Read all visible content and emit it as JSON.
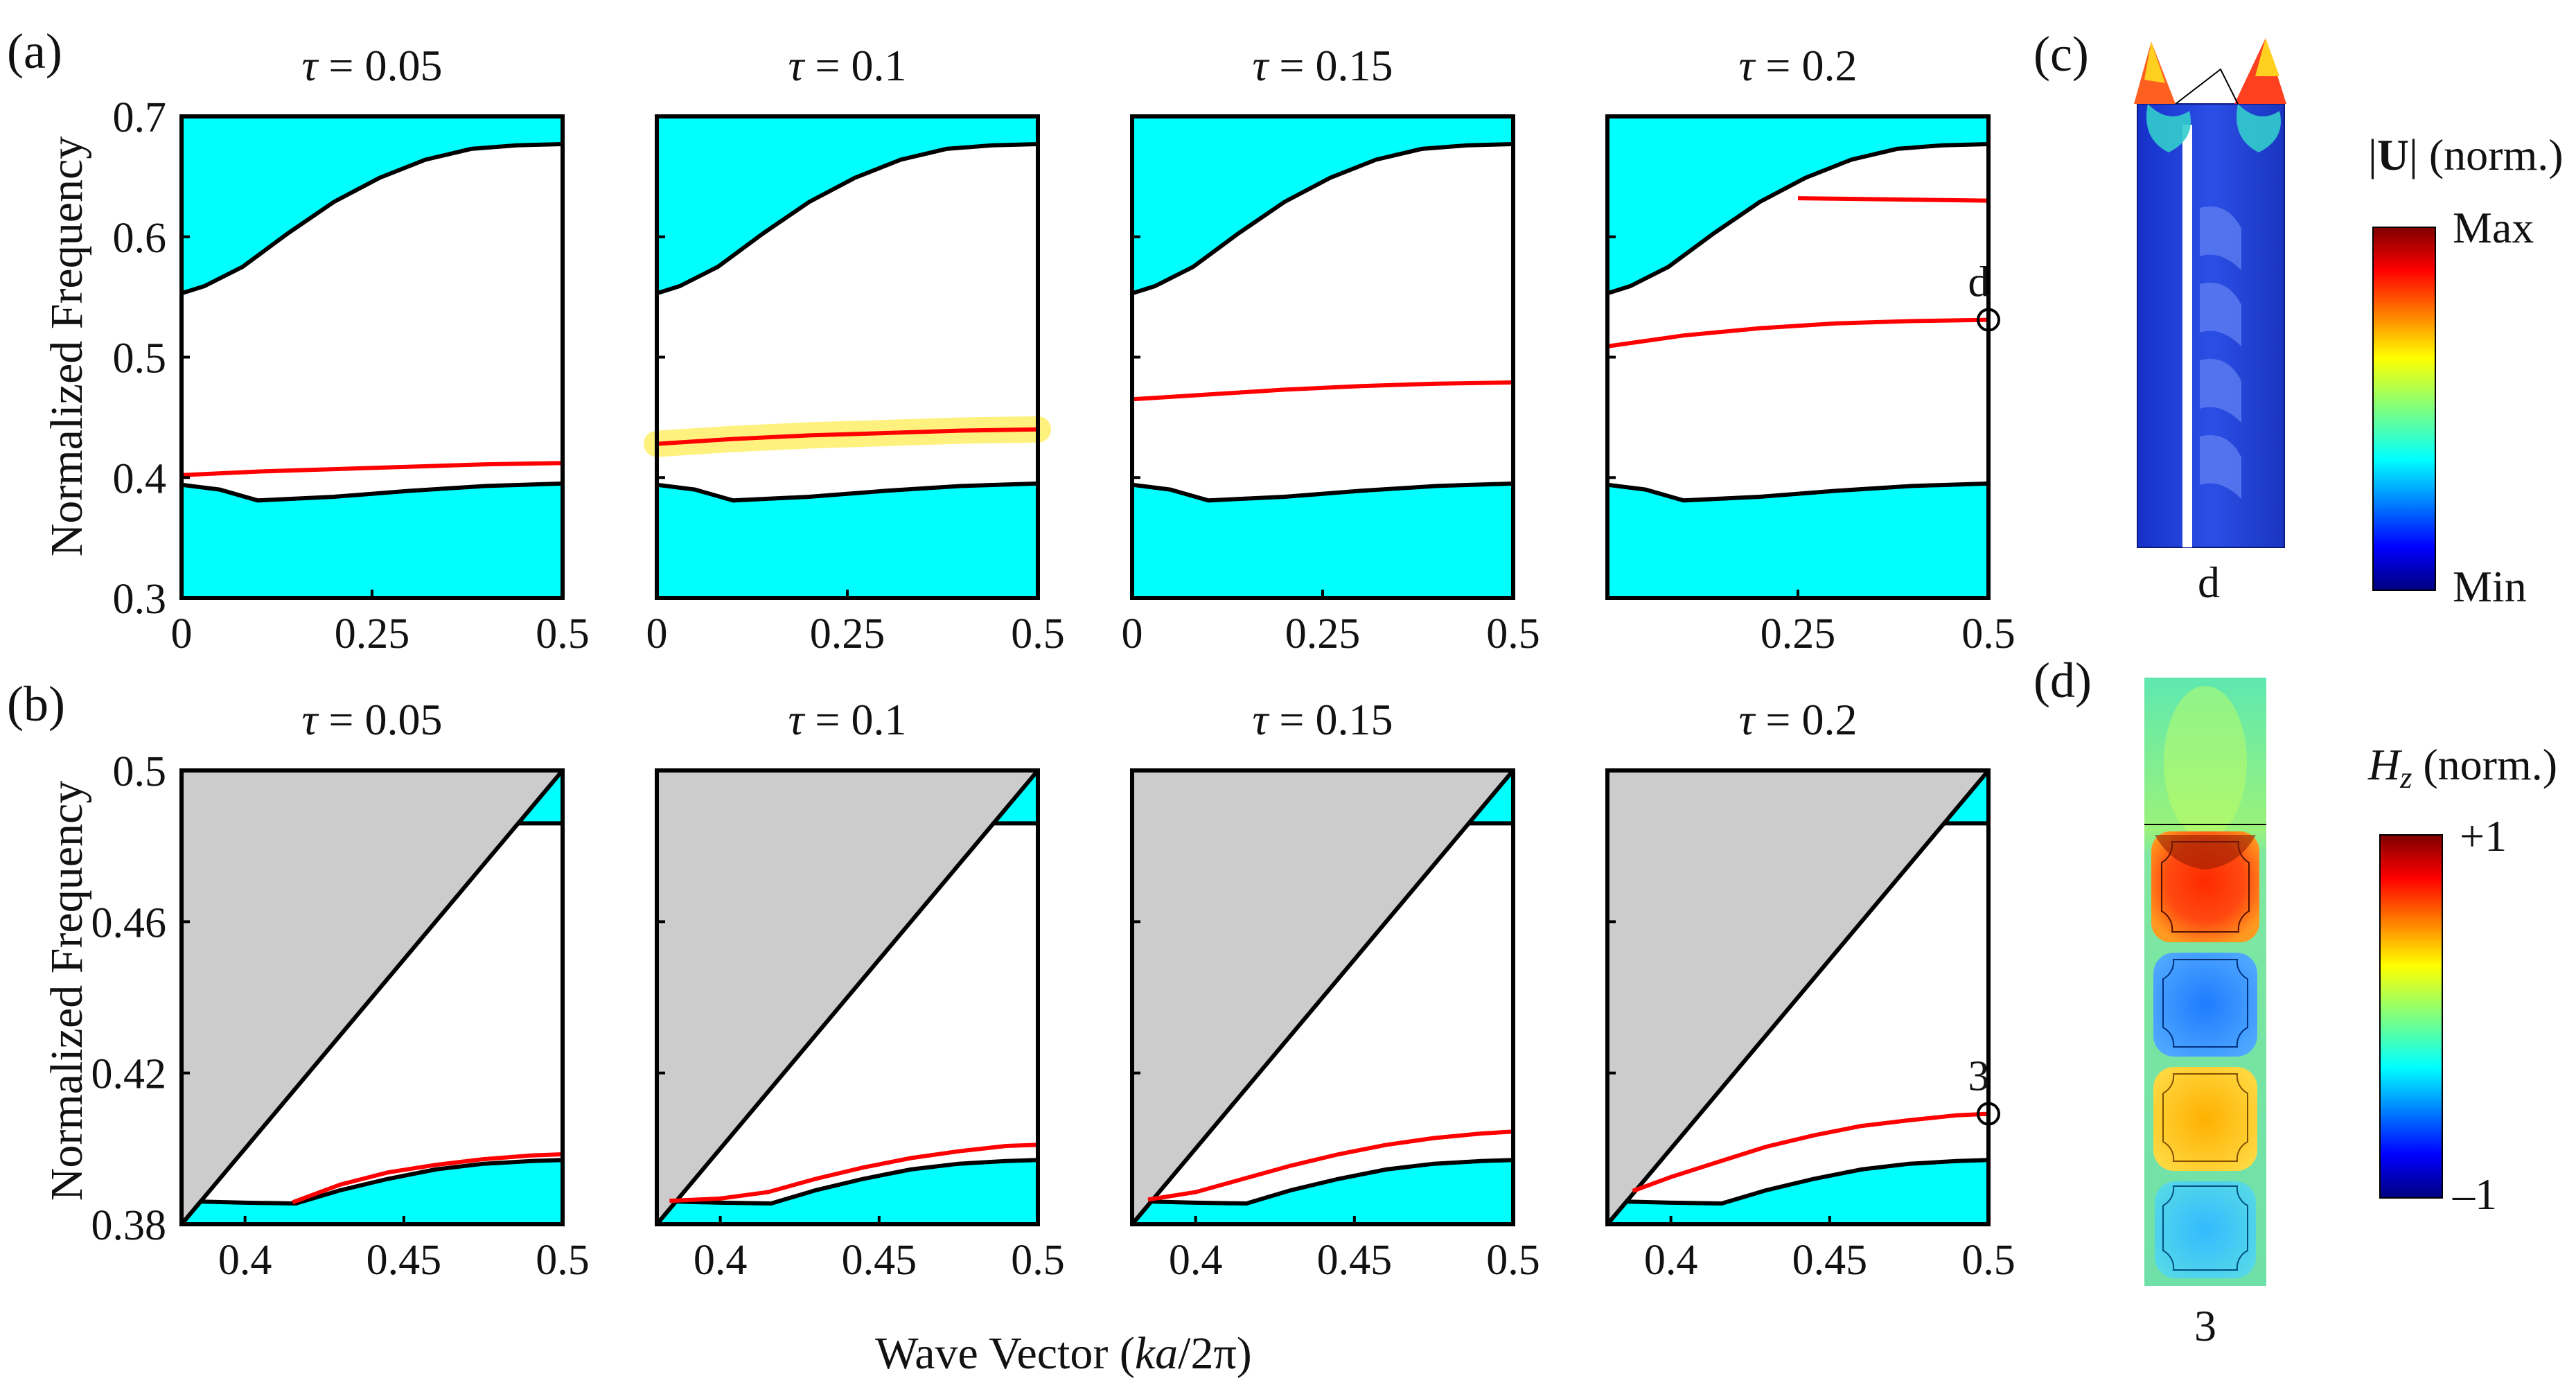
{
  "figure": {
    "panel_labels": {
      "a": "(a)",
      "b": "(b)",
      "c": "(c)",
      "d": "(d)"
    },
    "ylabel_a": "Normalized Frequency",
    "ylabel_b": "Normalized Frequency",
    "shared_xlabel": {
      "prefix": "Wave Vector (",
      "var": "ka",
      "suffix": "/2π)"
    },
    "tau_symbol": "τ",
    "colors": {
      "band": "#00FFFF",
      "light_cone": "#CCCCCC",
      "defect_mode": "#FF0000",
      "highlight": "#FFEE66",
      "frame": "#000000"
    }
  },
  "panel_c": {
    "label": "(c)",
    "colorbar_title_prefix": "|",
    "colorbar_title_bold": "U",
    "colorbar_title_suffix": "| (norm.)",
    "colorbar_max": "Max",
    "colorbar_min": "Min",
    "mode_label": "d",
    "colormap": "jet",
    "image_description_icon": "mechanical-mode-shape"
  },
  "panel_d": {
    "label": "(d)",
    "colorbar_title_var": "H",
    "colorbar_title_sub": "z",
    "colorbar_title_suffix": " (norm.)",
    "colorbar_max": "+1",
    "colorbar_min": "–1",
    "mode_label": "3",
    "colormap": "jet",
    "image_description_icon": "optical-field-map"
  },
  "chart_data": [
    {
      "id": "a1",
      "type": "line",
      "row": "a",
      "title_value": "0.05",
      "xlim": [
        0,
        0.5
      ],
      "ylim": [
        0.3,
        0.7
      ],
      "xticks": [
        "0",
        "0.25",
        "0.5"
      ],
      "yticks": [
        "0.3",
        "0.4",
        "0.5",
        "0.6",
        "0.7"
      ],
      "upper_band": [
        [
          0,
          0.553
        ],
        [
          0.03,
          0.559
        ],
        [
          0.08,
          0.575
        ],
        [
          0.14,
          0.603
        ],
        [
          0.2,
          0.629
        ],
        [
          0.26,
          0.649
        ],
        [
          0.32,
          0.664
        ],
        [
          0.38,
          0.673
        ],
        [
          0.44,
          0.676
        ],
        [
          0.5,
          0.677
        ]
      ],
      "lower_band": [
        [
          0,
          0.394
        ],
        [
          0.05,
          0.39
        ],
        [
          0.1,
          0.381
        ],
        [
          0.2,
          0.384
        ],
        [
          0.3,
          0.389
        ],
        [
          0.4,
          0.393
        ],
        [
          0.5,
          0.395
        ]
      ],
      "defect_modes": [
        [
          [
            0,
            0.402
          ],
          [
            0.1,
            0.405
          ],
          [
            0.2,
            0.407
          ],
          [
            0.3,
            0.409
          ],
          [
            0.4,
            0.411
          ],
          [
            0.5,
            0.412
          ]
        ]
      ]
    },
    {
      "id": "a2",
      "type": "line",
      "row": "a",
      "title_value": "0.1",
      "xlim": [
        0,
        0.5
      ],
      "ylim": [
        0.3,
        0.7
      ],
      "xticks": [
        "0",
        "0.25",
        "0.5"
      ],
      "yticks": [],
      "upper_band": [
        [
          0,
          0.553
        ],
        [
          0.03,
          0.559
        ],
        [
          0.08,
          0.575
        ],
        [
          0.14,
          0.603
        ],
        [
          0.2,
          0.629
        ],
        [
          0.26,
          0.649
        ],
        [
          0.32,
          0.664
        ],
        [
          0.38,
          0.673
        ],
        [
          0.44,
          0.676
        ],
        [
          0.5,
          0.677
        ]
      ],
      "lower_band": [
        [
          0,
          0.394
        ],
        [
          0.05,
          0.39
        ],
        [
          0.1,
          0.381
        ],
        [
          0.2,
          0.384
        ],
        [
          0.3,
          0.389
        ],
        [
          0.4,
          0.393
        ],
        [
          0.5,
          0.395
        ]
      ],
      "defect_modes": [
        [
          [
            0,
            0.428
          ],
          [
            0.1,
            0.432
          ],
          [
            0.2,
            0.435
          ],
          [
            0.3,
            0.437
          ],
          [
            0.4,
            0.439
          ],
          [
            0.5,
            0.44
          ]
        ]
      ],
      "highlighted": true
    },
    {
      "id": "a3",
      "type": "line",
      "row": "a",
      "title_value": "0.15",
      "xlim": [
        0,
        0.5
      ],
      "ylim": [
        0.3,
        0.7
      ],
      "xticks": [
        "0",
        "0.25",
        "0.5"
      ],
      "yticks": [],
      "upper_band": [
        [
          0,
          0.553
        ],
        [
          0.03,
          0.559
        ],
        [
          0.08,
          0.575
        ],
        [
          0.14,
          0.603
        ],
        [
          0.2,
          0.629
        ],
        [
          0.26,
          0.649
        ],
        [
          0.32,
          0.664
        ],
        [
          0.38,
          0.673
        ],
        [
          0.44,
          0.676
        ],
        [
          0.5,
          0.677
        ]
      ],
      "lower_band": [
        [
          0,
          0.394
        ],
        [
          0.05,
          0.39
        ],
        [
          0.1,
          0.381
        ],
        [
          0.2,
          0.384
        ],
        [
          0.3,
          0.389
        ],
        [
          0.4,
          0.393
        ],
        [
          0.5,
          0.395
        ]
      ],
      "defect_modes": [
        [
          [
            0,
            0.465
          ],
          [
            0.1,
            0.469
          ],
          [
            0.2,
            0.473
          ],
          [
            0.3,
            0.476
          ],
          [
            0.4,
            0.478
          ],
          [
            0.5,
            0.479
          ]
        ]
      ]
    },
    {
      "id": "a4",
      "type": "line",
      "row": "a",
      "title_value": "0.2",
      "xlim": [
        0,
        0.5
      ],
      "ylim": [
        0.3,
        0.7
      ],
      "xticks": [
        "0.25",
        "0.5"
      ],
      "yticks": [],
      "upper_band": [
        [
          0,
          0.553
        ],
        [
          0.03,
          0.559
        ],
        [
          0.08,
          0.575
        ],
        [
          0.14,
          0.603
        ],
        [
          0.2,
          0.629
        ],
        [
          0.26,
          0.649
        ],
        [
          0.32,
          0.664
        ],
        [
          0.38,
          0.673
        ],
        [
          0.44,
          0.676
        ],
        [
          0.5,
          0.677
        ]
      ],
      "lower_band": [
        [
          0,
          0.394
        ],
        [
          0.05,
          0.39
        ],
        [
          0.1,
          0.381
        ],
        [
          0.2,
          0.384
        ],
        [
          0.3,
          0.389
        ],
        [
          0.4,
          0.393
        ],
        [
          0.5,
          0.395
        ]
      ],
      "defect_modes": [
        [
          [
            0,
            0.509
          ],
          [
            0.1,
            0.518
          ],
          [
            0.2,
            0.524
          ],
          [
            0.3,
            0.528
          ],
          [
            0.4,
            0.53
          ],
          [
            0.5,
            0.531
          ]
        ],
        [
          [
            0.25,
            0.632
          ],
          [
            0.5,
            0.63
          ]
        ]
      ],
      "marker": {
        "x": 0.5,
        "y": 0.531,
        "label": "d"
      }
    },
    {
      "id": "b1",
      "type": "line",
      "row": "b",
      "title_value": "0.05",
      "xlim": [
        0.38,
        0.5
      ],
      "ylim": [
        0.38,
        0.5
      ],
      "xticks": [
        "0.4",
        "0.45",
        "0.5"
      ],
      "yticks": [
        "0.38",
        "0.42",
        "0.46",
        "0.5"
      ],
      "top_band_y": 0.486,
      "lower_band": [
        [
          0.38,
          0.38
        ],
        [
          0.386,
          0.386
        ],
        [
          0.4,
          0.3857
        ],
        [
          0.416,
          0.3855
        ],
        [
          0.43,
          0.389
        ],
        [
          0.445,
          0.392
        ],
        [
          0.46,
          0.3945
        ],
        [
          0.475,
          0.396
        ],
        [
          0.49,
          0.3967
        ],
        [
          0.5,
          0.397
        ]
      ],
      "defect_modes": [
        [
          [
            0.415,
            0.3858
          ],
          [
            0.43,
            0.3905
          ],
          [
            0.445,
            0.3937
          ],
          [
            0.46,
            0.3957
          ],
          [
            0.475,
            0.3972
          ],
          [
            0.49,
            0.3982
          ],
          [
            0.5,
            0.3985
          ]
        ]
      ]
    },
    {
      "id": "b2",
      "type": "line",
      "row": "b",
      "title_value": "0.1",
      "xlim": [
        0.38,
        0.5
      ],
      "ylim": [
        0.38,
        0.5
      ],
      "xticks": [
        "0.4",
        "0.45",
        "0.5"
      ],
      "yticks": [],
      "top_band_y": 0.486,
      "lower_band": [
        [
          0.38,
          0.38
        ],
        [
          0.386,
          0.386
        ],
        [
          0.4,
          0.3857
        ],
        [
          0.416,
          0.3855
        ],
        [
          0.43,
          0.389
        ],
        [
          0.445,
          0.392
        ],
        [
          0.46,
          0.3945
        ],
        [
          0.475,
          0.396
        ],
        [
          0.49,
          0.3967
        ],
        [
          0.5,
          0.397
        ]
      ],
      "defect_modes": [
        [
          [
            0.384,
            0.3862
          ],
          [
            0.4,
            0.3868
          ],
          [
            0.415,
            0.3885
          ],
          [
            0.43,
            0.392
          ],
          [
            0.445,
            0.395
          ],
          [
            0.46,
            0.3975
          ],
          [
            0.475,
            0.3993
          ],
          [
            0.49,
            0.4007
          ],
          [
            0.5,
            0.401
          ]
        ]
      ]
    },
    {
      "id": "b3",
      "type": "line",
      "row": "b",
      "title_value": "0.15",
      "xlim": [
        0.38,
        0.5
      ],
      "ylim": [
        0.38,
        0.5
      ],
      "xticks": [
        "0.4",
        "0.45",
        "0.5"
      ],
      "yticks": [],
      "top_band_y": 0.486,
      "lower_band": [
        [
          0.38,
          0.38
        ],
        [
          0.386,
          0.386
        ],
        [
          0.4,
          0.3857
        ],
        [
          0.416,
          0.3855
        ],
        [
          0.43,
          0.389
        ],
        [
          0.445,
          0.392
        ],
        [
          0.46,
          0.3945
        ],
        [
          0.475,
          0.396
        ],
        [
          0.49,
          0.3967
        ],
        [
          0.5,
          0.397
        ]
      ],
      "defect_modes": [
        [
          [
            0.385,
            0.3865
          ],
          [
            0.4,
            0.3885
          ],
          [
            0.415,
            0.392
          ],
          [
            0.43,
            0.3955
          ],
          [
            0.445,
            0.3985
          ],
          [
            0.46,
            0.401
          ],
          [
            0.475,
            0.4028
          ],
          [
            0.49,
            0.404
          ],
          [
            0.5,
            0.4045
          ]
        ]
      ]
    },
    {
      "id": "b4",
      "type": "line",
      "row": "b",
      "title_value": "0.2",
      "xlim": [
        0.38,
        0.5
      ],
      "ylim": [
        0.38,
        0.5
      ],
      "xticks": [
        "0.4",
        "0.45",
        "0.5"
      ],
      "yticks": [],
      "top_band_y": 0.486,
      "lower_band": [
        [
          0.38,
          0.38
        ],
        [
          0.386,
          0.386
        ],
        [
          0.4,
          0.3857
        ],
        [
          0.416,
          0.3855
        ],
        [
          0.43,
          0.389
        ],
        [
          0.445,
          0.392
        ],
        [
          0.46,
          0.3945
        ],
        [
          0.475,
          0.396
        ],
        [
          0.49,
          0.3967
        ],
        [
          0.5,
          0.397
        ]
      ],
      "defect_modes": [
        [
          [
            0.388,
            0.3888
          ],
          [
            0.4,
            0.3925
          ],
          [
            0.415,
            0.3965
          ],
          [
            0.43,
            0.4005
          ],
          [
            0.445,
            0.4035
          ],
          [
            0.46,
            0.406
          ],
          [
            0.475,
            0.4075
          ],
          [
            0.49,
            0.4088
          ],
          [
            0.5,
            0.4092
          ]
        ]
      ],
      "marker": {
        "x": 0.5,
        "y": 0.4092,
        "label": "3"
      }
    }
  ]
}
